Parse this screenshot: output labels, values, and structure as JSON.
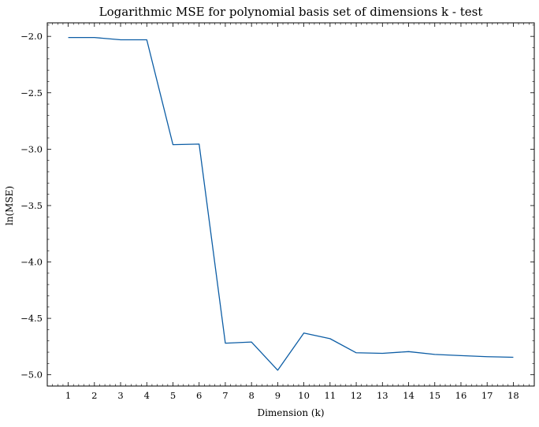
{
  "chart_data": {
    "type": "line",
    "title": "Logarithmic MSE for polynomial basis set of dimensions k - test",
    "xlabel": "Dimension (k)",
    "ylabel": "ln(MSE)",
    "x": [
      1,
      2,
      3,
      4,
      5,
      6,
      7,
      8,
      9,
      10,
      11,
      12,
      13,
      14,
      15,
      16,
      17,
      18
    ],
    "series": [
      {
        "values": [
          -2.01,
          -2.01,
          -2.03,
          -2.03,
          -2.96,
          -2.955,
          -4.72,
          -4.71,
          -4.96,
          -4.63,
          -4.68,
          -4.805,
          -4.81,
          -4.795,
          -4.82,
          -4.83,
          -4.84,
          -4.845
        ],
        "color": "#0c5da5"
      }
    ],
    "xticks": [
      "1",
      "2",
      "3",
      "4",
      "5",
      "6",
      "7",
      "8",
      "9",
      "10",
      "11",
      "12",
      "13",
      "14",
      "15",
      "16",
      "17",
      "18"
    ],
    "yticks": [
      "−2.0",
      "−2.5",
      "−3.0",
      "−3.5",
      "−4.0",
      "−4.5",
      "−5.0"
    ],
    "ytick_values": [
      -2.0,
      -2.5,
      -3.0,
      -3.5,
      -4.0,
      -4.5,
      -5.0
    ],
    "xlim": [
      0.2,
      18.8
    ],
    "ylim": [
      -5.1,
      -1.88
    ],
    "grid": false,
    "minor_ticks": true
  }
}
